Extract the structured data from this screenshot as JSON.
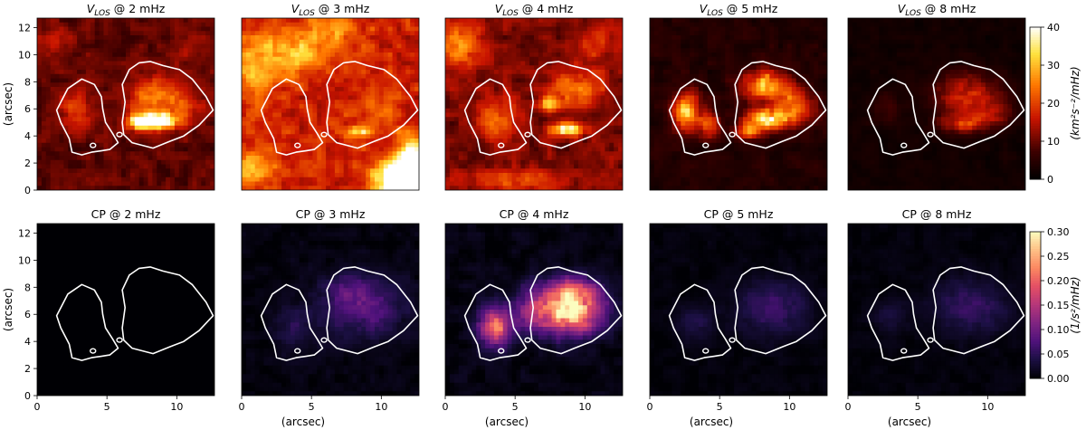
{
  "figure": {
    "rows": [
      {
        "quantity": "V_LOS",
        "panel_titles": [
          {
            "sym": "V",
            "sub": "LOS",
            "rest": " @ 2 mHz"
          },
          {
            "sym": "V",
            "sub": "LOS",
            "rest": " @ 3 mHz"
          },
          {
            "sym": "V",
            "sub": "LOS",
            "rest": " @ 4 mHz"
          },
          {
            "sym": "V",
            "sub": "LOS",
            "rest": " @ 5 mHz"
          },
          {
            "sym": "V",
            "sub": "LOS",
            "rest": " @ 8 mHz"
          }
        ],
        "ylabel": "(arcsec)",
        "colormap": "hot",
        "colorbar": {
          "label": "(km²s⁻²/mHz)",
          "range": [
            0,
            40
          ],
          "ticks": [
            "0",
            "10",
            "20",
            "30",
            "40"
          ]
        }
      },
      {
        "quantity": "CP",
        "panel_titles": [
          {
            "sym": "CP",
            "sub": "",
            "rest": " @ 2 mHz"
          },
          {
            "sym": "CP",
            "sub": "",
            "rest": " @ 3 mHz"
          },
          {
            "sym": "CP",
            "sub": "",
            "rest": " @ 4 mHz"
          },
          {
            "sym": "CP",
            "sub": "",
            "rest": " @ 5 mHz"
          },
          {
            "sym": "CP",
            "sub": "",
            "rest": " @ 8 mHz"
          }
        ],
        "ylabel": "(arcsec)",
        "colormap": "magma",
        "colorbar": {
          "label": "(1/s²/mHz)",
          "range": [
            0,
            0.3
          ],
          "ticks": [
            "0.00",
            "0.05",
            "0.10",
            "0.15",
            "0.20",
            "0.25",
            "0.30"
          ]
        }
      }
    ],
    "xlabel": "(arcsec)",
    "x_ticks": [
      "0",
      "5",
      "10"
    ],
    "y_ticks": [
      "0",
      "2",
      "4",
      "6",
      "8",
      "10",
      "12"
    ]
  },
  "chart_data": {
    "type": "heatmap",
    "layout": "2 rows x 5 columns",
    "x_range": [
      0,
      12.7
    ],
    "y_range": [
      0,
      12.7
    ],
    "x_unit": "arcsec",
    "y_unit": "arcsec",
    "frequencies_mHz": [
      2,
      3,
      4,
      5,
      8
    ],
    "contour": {
      "color": "#ffffff",
      "left_region": [
        [
          1.6,
          6.3
        ],
        [
          2.2,
          7.5
        ],
        [
          3.2,
          8.2
        ],
        [
          4.1,
          7.8
        ],
        [
          4.6,
          6.9
        ],
        [
          4.7,
          6.0
        ],
        [
          4.9,
          5.0
        ],
        [
          5.4,
          4.2
        ],
        [
          5.8,
          3.5
        ],
        [
          5.2,
          3.0
        ],
        [
          4.6,
          2.9
        ],
        [
          3.9,
          2.8
        ],
        [
          3.2,
          2.6
        ],
        [
          2.5,
          2.8
        ],
        [
          2.3,
          3.8
        ],
        [
          1.7,
          5.0
        ],
        [
          1.4,
          5.9
        ]
      ],
      "right_region": [
        [
          6.2,
          4.1
        ],
        [
          6.8,
          3.5
        ],
        [
          8.3,
          3.1
        ],
        [
          9.5,
          3.6
        ],
        [
          10.5,
          4.0
        ],
        [
          11.6,
          4.8
        ],
        [
          12.6,
          5.9
        ],
        [
          12.1,
          6.9
        ],
        [
          11.1,
          8.2
        ],
        [
          10.2,
          8.9
        ],
        [
          9.0,
          9.2
        ],
        [
          8.1,
          9.5
        ],
        [
          7.3,
          9.4
        ],
        [
          6.6,
          8.9
        ],
        [
          6.1,
          7.8
        ],
        [
          6.3,
          6.5
        ],
        [
          6.1,
          5.0
        ]
      ],
      "pores": [
        [
          4.0,
          3.3
        ],
        [
          5.9,
          4.1
        ]
      ]
    },
    "vlos": {
      "units": "km^2 s^-2 / mHz",
      "range": [
        0,
        40
      ],
      "panels": [
        {
          "freq_mHz": 2,
          "background": 9,
          "texture": 3.0,
          "hotspots": [
            {
              "x": 8.8,
              "y": 5.1,
              "rx": 1.3,
              "ry": 0.55,
              "v": 34
            },
            {
              "x": 7.4,
              "y": 5.0,
              "rx": 1.0,
              "ry": 0.6,
              "v": 24
            },
            {
              "x": 8.3,
              "y": 7.0,
              "rx": 1.8,
              "ry": 1.5,
              "v": 15
            },
            {
              "x": 3.0,
              "y": 6.0,
              "rx": 1.4,
              "ry": 1.4,
              "v": 10
            },
            {
              "x": 10.5,
              "y": 6.2,
              "rx": 1.4,
              "ry": 1.2,
              "v": 9
            },
            {
              "x": 1.2,
              "y": 11.0,
              "rx": 1.6,
              "ry": 1.2,
              "v": 6
            },
            {
              "x": 11.0,
              "y": 10.5,
              "rx": 1.6,
              "ry": 1.4,
              "v": 4
            }
          ]
        },
        {
          "freq_mHz": 3,
          "background": 17,
          "texture": 4.5,
          "hotspots": [
            {
              "x": 11.3,
              "y": 0.8,
              "rx": 1.6,
              "ry": 1.3,
              "v": 44
            },
            {
              "x": 12.3,
              "y": 2.5,
              "rx": 1.1,
              "ry": 1.5,
              "v": 26
            },
            {
              "x": 1.0,
              "y": 1.5,
              "rx": 1.5,
              "ry": 1.2,
              "v": 14
            },
            {
              "x": 8.4,
              "y": 4.3,
              "rx": 0.9,
              "ry": 0.4,
              "v": 22
            },
            {
              "x": 3.2,
              "y": 10.2,
              "rx": 3.0,
              "ry": 1.5,
              "v": 14
            },
            {
              "x": 0.8,
              "y": 8.0,
              "rx": 1.1,
              "ry": 1.8,
              "v": 10
            },
            {
              "x": 9.5,
              "y": 6.0,
              "rx": 1.4,
              "ry": 1.0,
              "v": 5
            },
            {
              "x": 6.6,
              "y": 11.8,
              "rx": 2.0,
              "ry": 0.9,
              "v": 10
            }
          ]
        },
        {
          "freq_mHz": 4,
          "background": 11,
          "texture": 3.5,
          "hotspots": [
            {
              "x": 8.8,
              "y": 4.5,
              "rx": 1.2,
              "ry": 0.45,
              "v": 28
            },
            {
              "x": 7.4,
              "y": 6.3,
              "rx": 0.6,
              "ry": 0.5,
              "v": 22
            },
            {
              "x": 9.5,
              "y": 7.6,
              "rx": 1.8,
              "ry": 1.3,
              "v": 14
            },
            {
              "x": 3.6,
              "y": 5.4,
              "rx": 1.3,
              "ry": 1.4,
              "v": 12
            },
            {
              "x": 1.0,
              "y": 10.6,
              "rx": 1.5,
              "ry": 1.6,
              "v": 16
            },
            {
              "x": 5.0,
              "y": 0.7,
              "rx": 3.5,
              "ry": 0.8,
              "v": 9
            },
            {
              "x": 10.8,
              "y": 10.8,
              "rx": 1.5,
              "ry": 1.2,
              "v": 8
            }
          ]
        },
        {
          "freq_mHz": 5,
          "background": 4,
          "texture": 2.0,
          "hotspots": [
            {
              "x": 8.4,
              "y": 5.2,
              "rx": 1.5,
              "ry": 0.75,
              "v": 32
            },
            {
              "x": 2.7,
              "y": 5.8,
              "rx": 0.9,
              "ry": 1.4,
              "v": 28
            },
            {
              "x": 4.3,
              "y": 4.9,
              "rx": 0.6,
              "ry": 0.9,
              "v": 18
            },
            {
              "x": 8.3,
              "y": 7.7,
              "rx": 1.6,
              "ry": 1.1,
              "v": 26
            },
            {
              "x": 10.5,
              "y": 6.2,
              "rx": 1.3,
              "ry": 1.1,
              "v": 18
            },
            {
              "x": 7.0,
              "y": 4.3,
              "rx": 0.9,
              "ry": 0.5,
              "v": 16
            }
          ]
        },
        {
          "freq_mHz": 8,
          "background": 2,
          "texture": 1.2,
          "hotspots": [
            {
              "x": 8.6,
              "y": 7.0,
              "rx": 2.3,
              "ry": 1.6,
              "v": 15
            },
            {
              "x": 8.2,
              "y": 4.9,
              "rx": 1.6,
              "ry": 0.7,
              "v": 14
            },
            {
              "x": 10.4,
              "y": 5.6,
              "rx": 1.3,
              "ry": 0.9,
              "v": 9
            },
            {
              "x": 2.7,
              "y": 6.0,
              "rx": 1.1,
              "ry": 1.2,
              "v": 5
            }
          ]
        }
      ]
    },
    "cp": {
      "units": "1 / s^2 / mHz",
      "range": [
        0,
        0.3
      ],
      "panels": [
        {
          "freq_mHz": 2,
          "background": 0.0,
          "texture": 0.0,
          "hotspots": []
        },
        {
          "freq_mHz": 3,
          "background": 0.005,
          "texture": 0.01,
          "hotspots": [
            {
              "x": 8.8,
              "y": 6.5,
              "rx": 2.8,
              "ry": 2.2,
              "v": 0.075
            },
            {
              "x": 3.8,
              "y": 5.0,
              "rx": 1.3,
              "ry": 1.6,
              "v": 0.04
            },
            {
              "x": 7.6,
              "y": 7.8,
              "rx": 1.4,
              "ry": 1.0,
              "v": 0.04
            }
          ]
        },
        {
          "freq_mHz": 4,
          "background": 0.007,
          "texture": 0.012,
          "hotspots": [
            {
              "x": 8.8,
              "y": 6.3,
              "rx": 2.2,
              "ry": 1.6,
              "v": 0.29
            },
            {
              "x": 3.6,
              "y": 5.1,
              "rx": 1.1,
              "ry": 1.4,
              "v": 0.2
            },
            {
              "x": 9.2,
              "y": 7.8,
              "rx": 1.6,
              "ry": 1.0,
              "v": 0.1
            },
            {
              "x": 6.0,
              "y": 6.4,
              "rx": 1.0,
              "ry": 1.8,
              "v": 0.06
            }
          ]
        },
        {
          "freq_mHz": 5,
          "background": 0.004,
          "texture": 0.007,
          "hotspots": [
            {
              "x": 8.8,
              "y": 6.5,
              "rx": 2.4,
              "ry": 1.9,
              "v": 0.06
            },
            {
              "x": 3.2,
              "y": 5.5,
              "rx": 1.2,
              "ry": 1.3,
              "v": 0.035
            }
          ]
        },
        {
          "freq_mHz": 8,
          "background": 0.004,
          "texture": 0.007,
          "hotspots": [
            {
              "x": 8.8,
              "y": 6.6,
              "rx": 2.4,
              "ry": 1.9,
              "v": 0.055
            },
            {
              "x": 3.0,
              "y": 5.8,
              "rx": 1.1,
              "ry": 1.3,
              "v": 0.03
            }
          ]
        }
      ]
    }
  }
}
